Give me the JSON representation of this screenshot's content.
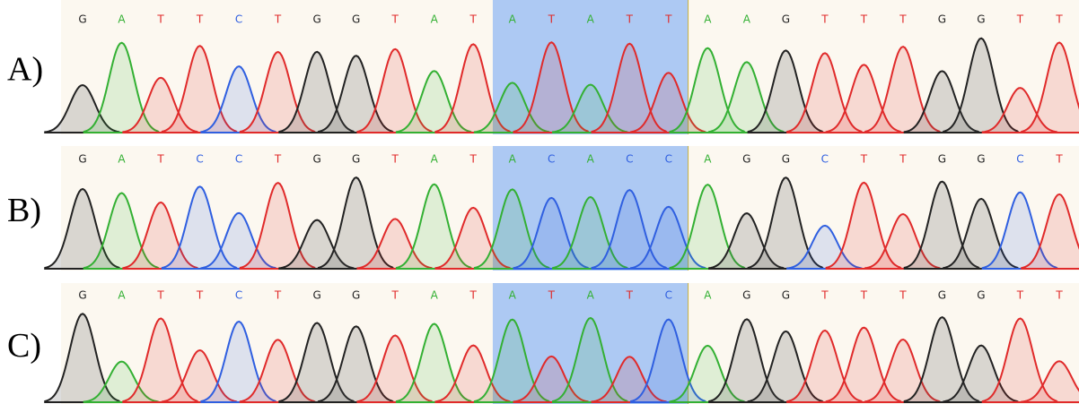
{
  "panels": [
    {
      "label": "A)",
      "bases": [
        "G",
        "A",
        "T",
        "T",
        "C",
        "T",
        "G",
        "G",
        "T",
        "A",
        "T",
        "A",
        "T",
        "A",
        "T",
        "T",
        "A",
        "A",
        "G",
        "T",
        "T",
        "T",
        "G",
        "G",
        "T",
        "T"
      ]
    },
    {
      "label": "B)",
      "bases": [
        "G",
        "A",
        "T",
        "C",
        "C",
        "T",
        "G",
        "G",
        "T",
        "A",
        "T",
        "A",
        "C",
        "A",
        "C",
        "C",
        "A",
        "G",
        "G",
        "C",
        "T",
        "T",
        "G",
        "G",
        "C",
        "T"
      ]
    },
    {
      "label": "C)",
      "bases": [
        "G",
        "A",
        "T",
        "T",
        "C",
        "T",
        "G",
        "G",
        "T",
        "A",
        "T",
        "A",
        "T",
        "A",
        "T",
        "C",
        "A",
        "G",
        "G",
        "T",
        "T",
        "T",
        "G",
        "G",
        "T",
        "T"
      ]
    }
  ]
}
